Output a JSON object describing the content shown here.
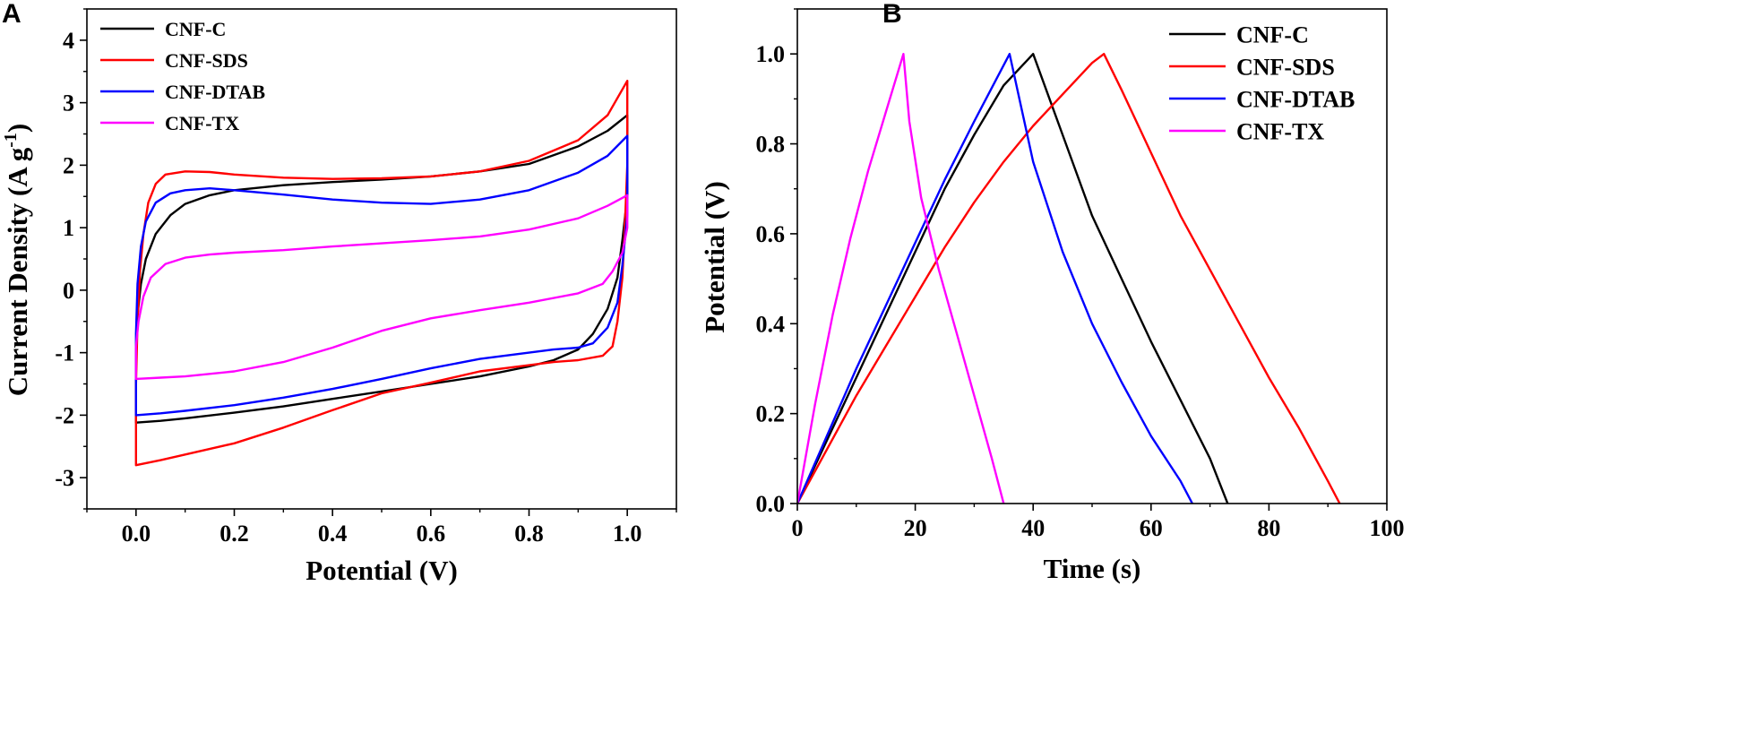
{
  "chart_data": [
    {
      "panel": "A",
      "type": "line",
      "title": "",
      "xlabel": "Potential (V)",
      "ylabel": "Current Density (A g",
      "ylabel_sup": "-1",
      "ylabel_close": ")",
      "xlim": [
        -0.1,
        1.1
      ],
      "ylim": [
        -3.5,
        4.5
      ],
      "xticks": [
        0.0,
        0.2,
        0.4,
        0.6,
        0.8,
        1.0
      ],
      "xtick_labels": [
        "0.0",
        "0.2",
        "0.4",
        "0.6",
        "0.8",
        "1.0"
      ],
      "yticks": [
        -3,
        -2,
        -1,
        0,
        1,
        2,
        3,
        4
      ],
      "ytick_labels": [
        "-3",
        "-2",
        "-1",
        "0",
        "1",
        "2",
        "3",
        "4"
      ],
      "grid": false,
      "legend_position": "top-left",
      "series": [
        {
          "name": "CNF-C",
          "color": "#000000",
          "points": [
            [
              0,
              -2.0
            ],
            [
              0,
              -1.0
            ],
            [
              0.003,
              -0.4
            ],
            [
              0.01,
              0.1
            ],
            [
              0.02,
              0.5
            ],
            [
              0.04,
              0.9
            ],
            [
              0.07,
              1.2
            ],
            [
              0.1,
              1.38
            ],
            [
              0.15,
              1.52
            ],
            [
              0.2,
              1.6
            ],
            [
              0.3,
              1.68
            ],
            [
              0.4,
              1.73
            ],
            [
              0.5,
              1.77
            ],
            [
              0.6,
              1.82
            ],
            [
              0.7,
              1.9
            ],
            [
              0.8,
              2.02
            ],
            [
              0.9,
              2.3
            ],
            [
              0.96,
              2.55
            ],
            [
              1.0,
              2.8
            ],
            [
              1.0,
              1.5
            ],
            [
              0.99,
              0.8
            ],
            [
              0.98,
              0.2
            ],
            [
              0.96,
              -0.3
            ],
            [
              0.93,
              -0.7
            ],
            [
              0.9,
              -0.95
            ],
            [
              0.85,
              -1.12
            ],
            [
              0.8,
              -1.22
            ],
            [
              0.7,
              -1.38
            ],
            [
              0.6,
              -1.5
            ],
            [
              0.5,
              -1.62
            ],
            [
              0.4,
              -1.74
            ],
            [
              0.3,
              -1.86
            ],
            [
              0.2,
              -1.96
            ],
            [
              0.1,
              -2.05
            ],
            [
              0.05,
              -2.09
            ],
            [
              0.0,
              -2.12
            ],
            [
              0,
              -2.0
            ]
          ]
        },
        {
          "name": "CNF-SDS",
          "color": "#ff0000",
          "points": [
            [
              0,
              -2.7
            ],
            [
              0,
              -1.5
            ],
            [
              0.003,
              -0.5
            ],
            [
              0.008,
              0.3
            ],
            [
              0.015,
              0.9
            ],
            [
              0.025,
              1.4
            ],
            [
              0.04,
              1.7
            ],
            [
              0.06,
              1.85
            ],
            [
              0.1,
              1.9
            ],
            [
              0.15,
              1.89
            ],
            [
              0.2,
              1.85
            ],
            [
              0.3,
              1.8
            ],
            [
              0.4,
              1.78
            ],
            [
              0.5,
              1.79
            ],
            [
              0.6,
              1.82
            ],
            [
              0.7,
              1.9
            ],
            [
              0.8,
              2.07
            ],
            [
              0.9,
              2.4
            ],
            [
              0.96,
              2.8
            ],
            [
              1.0,
              3.35
            ],
            [
              1.0,
              2.0
            ],
            [
              0.995,
              1.0
            ],
            [
              0.99,
              0.2
            ],
            [
              0.98,
              -0.5
            ],
            [
              0.97,
              -0.9
            ],
            [
              0.95,
              -1.05
            ],
            [
              0.9,
              -1.12
            ],
            [
              0.85,
              -1.15
            ],
            [
              0.8,
              -1.2
            ],
            [
              0.7,
              -1.3
            ],
            [
              0.6,
              -1.48
            ],
            [
              0.5,
              -1.65
            ],
            [
              0.4,
              -1.92
            ],
            [
              0.3,
              -2.2
            ],
            [
              0.2,
              -2.45
            ],
            [
              0.1,
              -2.63
            ],
            [
              0.05,
              -2.72
            ],
            [
              0.0,
              -2.8
            ],
            [
              0,
              -2.7
            ]
          ]
        },
        {
          "name": "CNF-DTAB",
          "color": "#0000ff",
          "points": [
            [
              0,
              -1.8
            ],
            [
              0,
              -0.7
            ],
            [
              0.003,
              0.1
            ],
            [
              0.01,
              0.7
            ],
            [
              0.02,
              1.1
            ],
            [
              0.04,
              1.4
            ],
            [
              0.07,
              1.55
            ],
            [
              0.1,
              1.6
            ],
            [
              0.15,
              1.63
            ],
            [
              0.2,
              1.6
            ],
            [
              0.3,
              1.53
            ],
            [
              0.4,
              1.45
            ],
            [
              0.5,
              1.4
            ],
            [
              0.6,
              1.38
            ],
            [
              0.7,
              1.45
            ],
            [
              0.8,
              1.6
            ],
            [
              0.9,
              1.88
            ],
            [
              0.96,
              2.15
            ],
            [
              1.0,
              2.47
            ],
            [
              1.0,
              1.2
            ],
            [
              0.99,
              0.4
            ],
            [
              0.98,
              -0.2
            ],
            [
              0.96,
              -0.6
            ],
            [
              0.93,
              -0.85
            ],
            [
              0.9,
              -0.92
            ],
            [
              0.85,
              -0.95
            ],
            [
              0.8,
              -1.0
            ],
            [
              0.7,
              -1.1
            ],
            [
              0.6,
              -1.25
            ],
            [
              0.5,
              -1.42
            ],
            [
              0.4,
              -1.58
            ],
            [
              0.3,
              -1.72
            ],
            [
              0.2,
              -1.84
            ],
            [
              0.1,
              -1.93
            ],
            [
              0.05,
              -1.97
            ],
            [
              0.0,
              -2.0
            ],
            [
              0,
              -1.8
            ]
          ]
        },
        {
          "name": "CNF-TX",
          "color": "#ff00ff",
          "points": [
            [
              0,
              -1.42
            ],
            [
              0,
              -0.9
            ],
            [
              0.005,
              -0.5
            ],
            [
              0.015,
              -0.1
            ],
            [
              0.03,
              0.2
            ],
            [
              0.06,
              0.42
            ],
            [
              0.1,
              0.52
            ],
            [
              0.15,
              0.57
            ],
            [
              0.2,
              0.6
            ],
            [
              0.3,
              0.64
            ],
            [
              0.4,
              0.7
            ],
            [
              0.5,
              0.75
            ],
            [
              0.6,
              0.8
            ],
            [
              0.7,
              0.86
            ],
            [
              0.8,
              0.97
            ],
            [
              0.9,
              1.15
            ],
            [
              0.96,
              1.35
            ],
            [
              1.0,
              1.52
            ],
            [
              1.0,
              1.0
            ],
            [
              0.99,
              0.6
            ],
            [
              0.97,
              0.3
            ],
            [
              0.95,
              0.1
            ],
            [
              0.9,
              -0.05
            ],
            [
              0.8,
              -0.2
            ],
            [
              0.7,
              -0.32
            ],
            [
              0.6,
              -0.45
            ],
            [
              0.5,
              -0.65
            ],
            [
              0.4,
              -0.92
            ],
            [
              0.3,
              -1.15
            ],
            [
              0.2,
              -1.3
            ],
            [
              0.1,
              -1.38
            ],
            [
              0.05,
              -1.4
            ],
            [
              0.0,
              -1.42
            ]
          ]
        }
      ]
    },
    {
      "panel": "B",
      "type": "line",
      "title": "",
      "xlabel": "Time (s)",
      "ylabel": "Potential (V)",
      "xlim": [
        0,
        100
      ],
      "ylim": [
        0,
        1.1
      ],
      "xticks": [
        0,
        20,
        40,
        60,
        80,
        100
      ],
      "xtick_labels": [
        "0",
        "20",
        "40",
        "60",
        "80",
        "100"
      ],
      "yticks": [
        0.0,
        0.2,
        0.4,
        0.6,
        0.8,
        1.0
      ],
      "ytick_labels": [
        "0.0",
        "0.2",
        "0.4",
        "0.6",
        "0.8",
        "1.0"
      ],
      "grid": false,
      "legend_position": "top-right",
      "series": [
        {
          "name": "CNF-C",
          "color": "#000000",
          "points": [
            [
              0,
              0
            ],
            [
              5,
              0.14
            ],
            [
              10,
              0.28
            ],
            [
              15,
              0.42
            ],
            [
              20,
              0.56
            ],
            [
              25,
              0.7
            ],
            [
              30,
              0.82
            ],
            [
              35,
              0.93
            ],
            [
              40,
              1.0
            ],
            [
              45,
              0.82
            ],
            [
              50,
              0.64
            ],
            [
              55,
              0.5
            ],
            [
              60,
              0.36
            ],
            [
              65,
              0.23
            ],
            [
              70,
              0.1
            ],
            [
              73,
              0
            ]
          ]
        },
        {
          "name": "CNF-SDS",
          "color": "#ff0000",
          "points": [
            [
              0,
              0
            ],
            [
              5,
              0.12
            ],
            [
              10,
              0.24
            ],
            [
              15,
              0.35
            ],
            [
              20,
              0.46
            ],
            [
              25,
              0.57
            ],
            [
              30,
              0.67
            ],
            [
              35,
              0.76
            ],
            [
              40,
              0.84
            ],
            [
              45,
              0.91
            ],
            [
              50,
              0.98
            ],
            [
              52,
              1.0
            ],
            [
              55,
              0.92
            ],
            [
              60,
              0.78
            ],
            [
              65,
              0.64
            ],
            [
              70,
              0.52
            ],
            [
              75,
              0.4
            ],
            [
              80,
              0.28
            ],
            [
              85,
              0.17
            ],
            [
              90,
              0.05
            ],
            [
              92,
              0
            ]
          ]
        },
        {
          "name": "CNF-DTAB",
          "color": "#0000ff",
          "points": [
            [
              0,
              0
            ],
            [
              5,
              0.15
            ],
            [
              10,
              0.3
            ],
            [
              15,
              0.44
            ],
            [
              20,
              0.58
            ],
            [
              25,
              0.72
            ],
            [
              30,
              0.85
            ],
            [
              34,
              0.95
            ],
            [
              36,
              1.0
            ],
            [
              40,
              0.76
            ],
            [
              45,
              0.56
            ],
            [
              50,
              0.4
            ],
            [
              55,
              0.27
            ],
            [
              60,
              0.15
            ],
            [
              65,
              0.05
            ],
            [
              67,
              0
            ]
          ]
        },
        {
          "name": "CNF-TX",
          "color": "#ff00ff",
          "points": [
            [
              0,
              0
            ],
            [
              3,
              0.22
            ],
            [
              6,
              0.42
            ],
            [
              9,
              0.59
            ],
            [
              12,
              0.74
            ],
            [
              15,
              0.87
            ],
            [
              18,
              1.0
            ],
            [
              19,
              0.85
            ],
            [
              21,
              0.68
            ],
            [
              24,
              0.52
            ],
            [
              27,
              0.38
            ],
            [
              30,
              0.24
            ],
            [
              33,
              0.1
            ],
            [
              35,
              0
            ]
          ]
        }
      ]
    }
  ]
}
